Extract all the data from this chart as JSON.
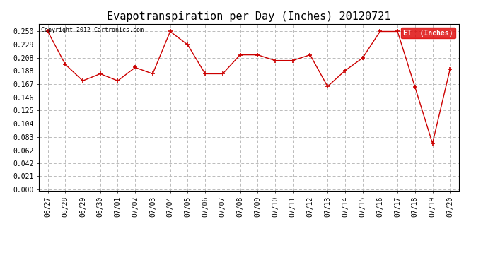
{
  "title": "Evapotranspiration per Day (Inches) 20120721",
  "copyright_text": "Copyright 2012 Cartronics.com",
  "legend_label": "ET  (Inches)",
  "x_labels": [
    "06/27",
    "06/28",
    "06/29",
    "06/30",
    "07/01",
    "07/02",
    "07/03",
    "07/04",
    "07/05",
    "07/06",
    "07/07",
    "07/08",
    "07/09",
    "07/10",
    "07/11",
    "07/12",
    "07/13",
    "07/14",
    "07/15",
    "07/16",
    "07/17",
    "07/18",
    "07/19",
    "07/20"
  ],
  "y_values": [
    0.25,
    0.198,
    0.172,
    0.183,
    0.172,
    0.193,
    0.183,
    0.25,
    0.229,
    0.183,
    0.183,
    0.213,
    0.213,
    0.204,
    0.204,
    0.213,
    0.163,
    0.188,
    0.208,
    0.25,
    0.25,
    0.162,
    0.073,
    0.19
  ],
  "line_color": "#cc0000",
  "marker": "+",
  "marker_size": 5,
  "bg_color": "#ffffff",
  "grid_color": "#bbbbbb",
  "y_ticks": [
    0.0,
    0.021,
    0.042,
    0.062,
    0.083,
    0.104,
    0.125,
    0.146,
    0.167,
    0.188,
    0.208,
    0.229,
    0.25
  ],
  "ylim": [
    -0.002,
    0.262
  ],
  "title_fontsize": 11,
  "tick_fontsize": 7,
  "legend_bg": "#dd0000",
  "legend_text_color": "#ffffff"
}
